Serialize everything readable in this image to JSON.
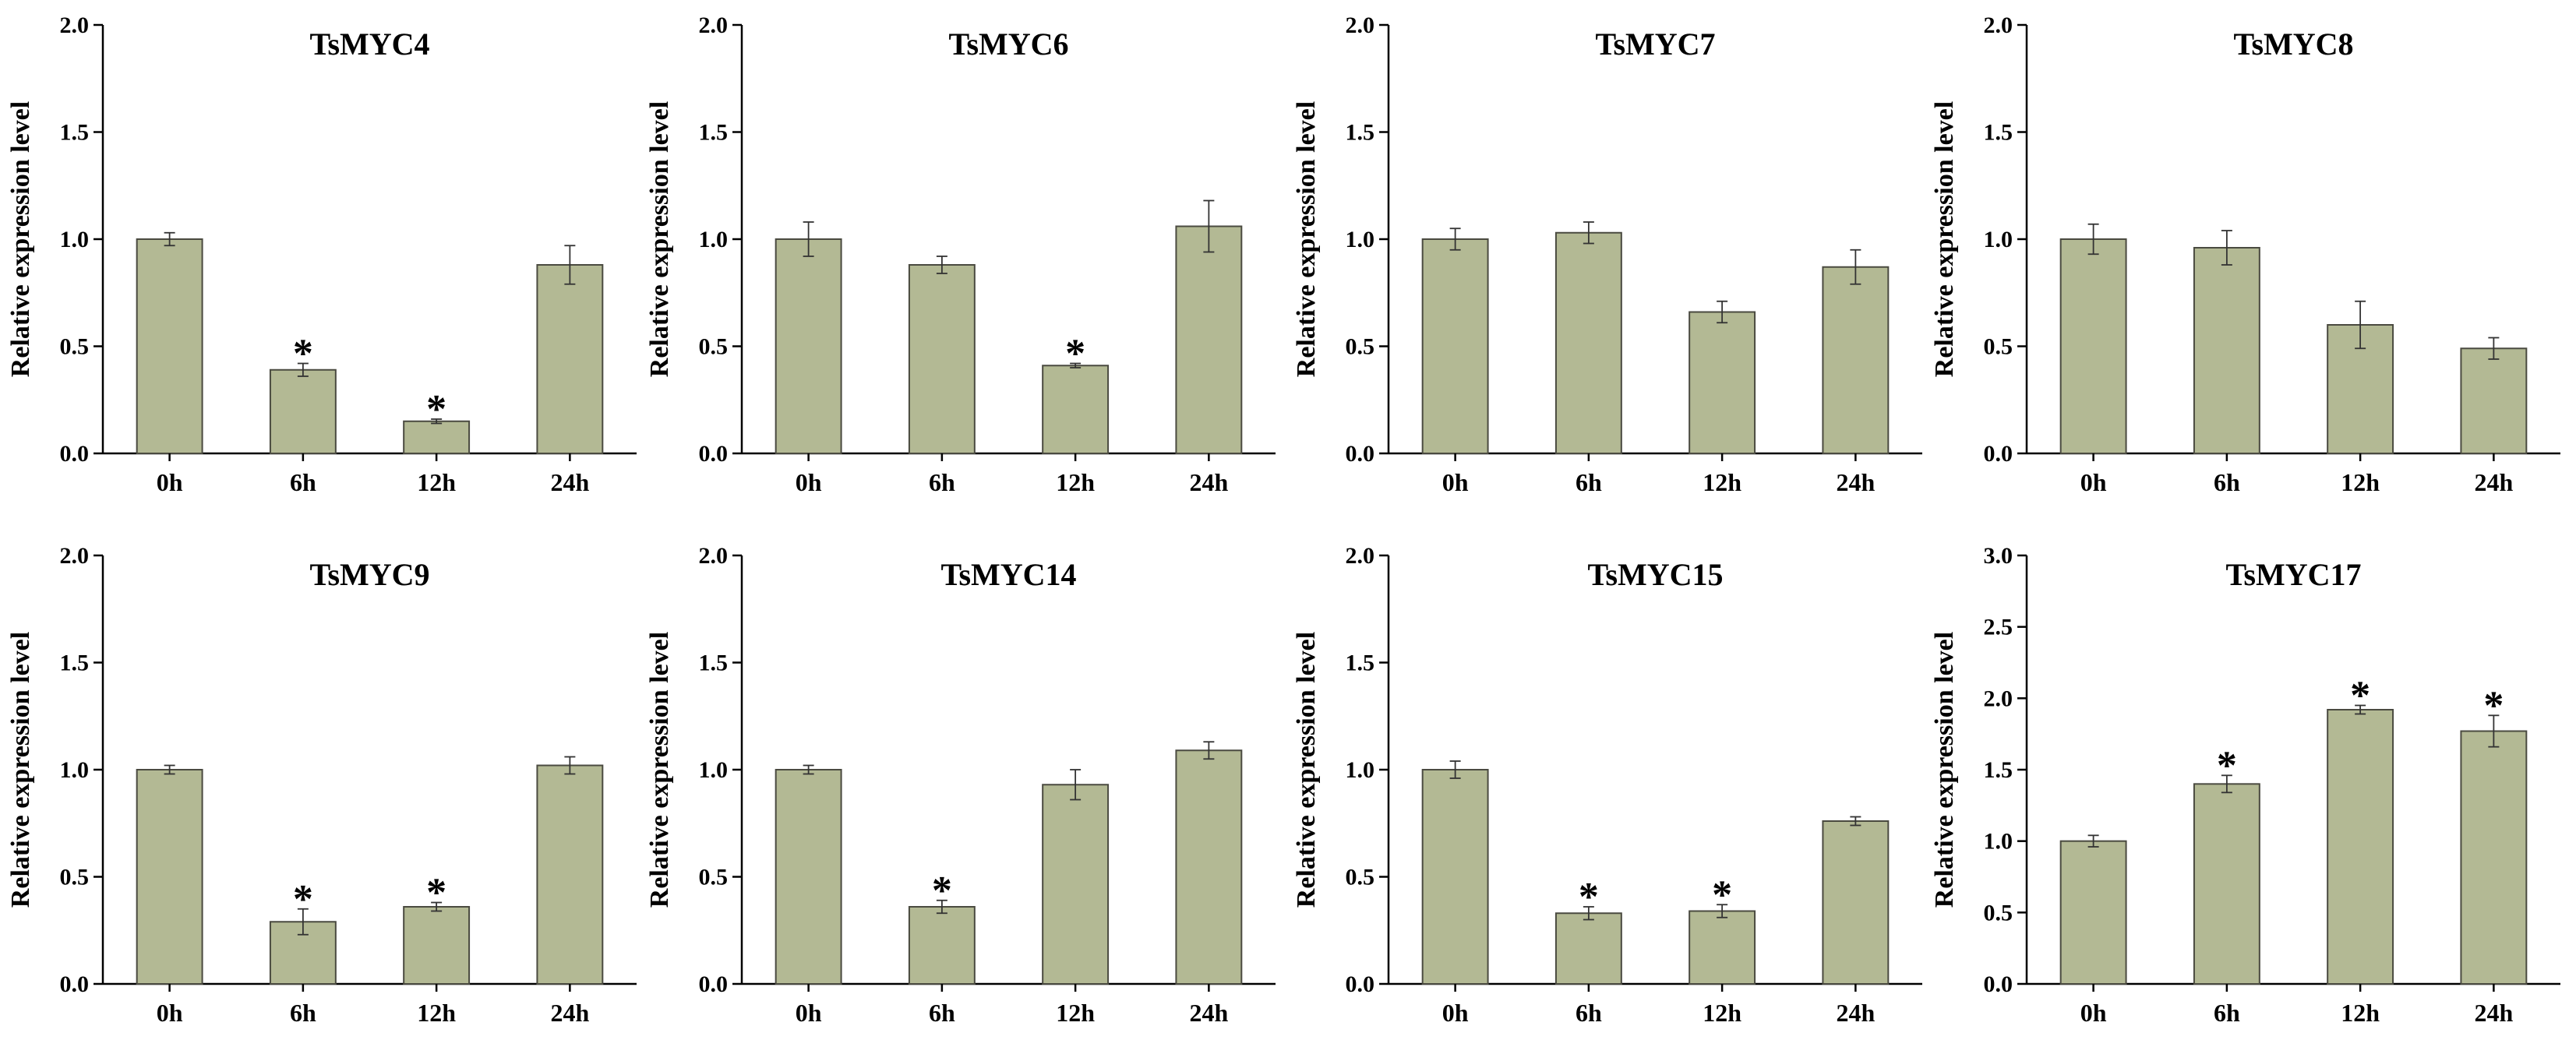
{
  "figure": {
    "bar_fill": "#b3b994",
    "bar_stroke": "#4a4a40",
    "axis_color": "#000000"
  },
  "chart_data": [
    {
      "type": "bar",
      "title": "TsMYC4",
      "ylabel": "Relative expression level",
      "xlabel": "",
      "categories": [
        "0h",
        "6h",
        "12h",
        "24h"
      ],
      "values": [
        1.0,
        0.39,
        0.15,
        0.88
      ],
      "errors": [
        0.03,
        0.03,
        0.01,
        0.09
      ],
      "significant": [
        false,
        true,
        true,
        false
      ],
      "significance_marker": "*",
      "ylim": [
        0,
        2.0
      ],
      "yticks": [
        "0.0",
        "0.5",
        "1.0",
        "1.5",
        "2.0"
      ]
    },
    {
      "type": "bar",
      "title": "TsMYC6",
      "ylabel": "Relative expression level",
      "xlabel": "",
      "categories": [
        "0h",
        "6h",
        "12h",
        "24h"
      ],
      "values": [
        1.0,
        0.88,
        0.41,
        1.06
      ],
      "errors": [
        0.08,
        0.04,
        0.01,
        0.12
      ],
      "significant": [
        false,
        false,
        true,
        false
      ],
      "significance_marker": "*",
      "ylim": [
        0,
        2.0
      ],
      "yticks": [
        "0.0",
        "0.5",
        "1.0",
        "1.5",
        "2.0"
      ]
    },
    {
      "type": "bar",
      "title": "TsMYC7",
      "ylabel": "Relative expression level",
      "xlabel": "",
      "categories": [
        "0h",
        "6h",
        "12h",
        "24h"
      ],
      "values": [
        1.0,
        1.03,
        0.66,
        0.87
      ],
      "errors": [
        0.05,
        0.05,
        0.05,
        0.08
      ],
      "significant": [
        false,
        false,
        false,
        false
      ],
      "significance_marker": "*",
      "ylim": [
        0,
        2.0
      ],
      "yticks": [
        "0.0",
        "0.5",
        "1.0",
        "1.5",
        "2.0"
      ]
    },
    {
      "type": "bar",
      "title": "TsMYC8",
      "ylabel": "Relative expression level",
      "xlabel": "",
      "categories": [
        "0h",
        "6h",
        "12h",
        "24h"
      ],
      "values": [
        1.0,
        0.96,
        0.6,
        0.49
      ],
      "errors": [
        0.07,
        0.08,
        0.11,
        0.05
      ],
      "significant": [
        false,
        false,
        false,
        false
      ],
      "significance_marker": "*",
      "ylim": [
        0,
        2.0
      ],
      "yticks": [
        "0.0",
        "0.5",
        "1.0",
        "1.5",
        "2.0"
      ]
    },
    {
      "type": "bar",
      "title": "TsMYC9",
      "ylabel": "Relative expression level",
      "xlabel": "",
      "categories": [
        "0h",
        "6h",
        "12h",
        "24h"
      ],
      "values": [
        1.0,
        0.29,
        0.36,
        1.02
      ],
      "errors": [
        0.02,
        0.06,
        0.02,
        0.04
      ],
      "significant": [
        false,
        true,
        true,
        false
      ],
      "significance_marker": "*",
      "ylim": [
        0,
        2.0
      ],
      "yticks": [
        "0.0",
        "0.5",
        "1.0",
        "1.5",
        "2.0"
      ]
    },
    {
      "type": "bar",
      "title": "TsMYC14",
      "ylabel": "Relative expression level",
      "xlabel": "",
      "categories": [
        "0h",
        "6h",
        "12h",
        "24h"
      ],
      "values": [
        1.0,
        0.36,
        0.93,
        1.09
      ],
      "errors": [
        0.02,
        0.03,
        0.07,
        0.04
      ],
      "significant": [
        false,
        true,
        false,
        false
      ],
      "significance_marker": "*",
      "ylim": [
        0,
        2.0
      ],
      "yticks": [
        "0.0",
        "0.5",
        "1.0",
        "1.5",
        "2.0"
      ]
    },
    {
      "type": "bar",
      "title": "TsMYC15",
      "ylabel": "Relative expression level",
      "xlabel": "",
      "categories": [
        "0h",
        "6h",
        "12h",
        "24h"
      ],
      "values": [
        1.0,
        0.33,
        0.34,
        0.76
      ],
      "errors": [
        0.04,
        0.03,
        0.03,
        0.02
      ],
      "significant": [
        false,
        true,
        true,
        false
      ],
      "significance_marker": "*",
      "ylim": [
        0,
        2.0
      ],
      "yticks": [
        "0.0",
        "0.5",
        "1.0",
        "1.5",
        "2.0"
      ]
    },
    {
      "type": "bar",
      "title": "TsMYC17",
      "ylabel": "Relative expression level",
      "xlabel": "",
      "categories": [
        "0h",
        "6h",
        "12h",
        "24h"
      ],
      "values": [
        1.0,
        1.4,
        1.92,
        1.77
      ],
      "errors": [
        0.04,
        0.06,
        0.03,
        0.11
      ],
      "significant": [
        false,
        true,
        true,
        true
      ],
      "significance_marker": "*",
      "ylim": [
        0,
        3.0
      ],
      "yticks": [
        "0.0",
        "0.5",
        "1.0",
        "1.5",
        "2.0",
        "2.5",
        "3.0"
      ]
    }
  ]
}
